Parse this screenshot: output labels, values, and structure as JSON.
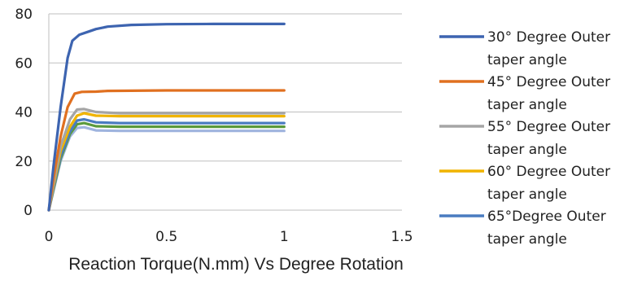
{
  "chart_data": {
    "type": "line",
    "title": "Reaction Torque(N.mm) Vs Degree Rotation",
    "xlim": [
      0,
      1.5
    ],
    "ylim": [
      0,
      80
    ],
    "x_ticks": [
      "0",
      "0.5",
      "1",
      "1.5"
    ],
    "y_ticks": [
      "0",
      "20",
      "40",
      "60",
      "80"
    ],
    "grid": "horizontal",
    "legend_position": "right",
    "series": [
      {
        "name": "30° Degree Outer taper angle",
        "legend_lines": [
          "30° Degree Outer",
          "taper angle"
        ],
        "color": "#3D64B0",
        "points": [
          [
            0,
            0
          ],
          [
            0.02,
            18
          ],
          [
            0.05,
            42
          ],
          [
            0.08,
            62
          ],
          [
            0.1,
            69
          ],
          [
            0.13,
            71.5
          ],
          [
            0.17,
            72.8
          ],
          [
            0.2,
            73.8
          ],
          [
            0.25,
            74.8
          ],
          [
            0.35,
            75.5
          ],
          [
            0.5,
            75.8
          ],
          [
            0.7,
            75.9
          ],
          [
            1,
            75.9
          ]
        ]
      },
      {
        "name": "45° Degree Outer taper angle",
        "legend_lines": [
          "45° Degree Outer",
          "taper angle"
        ],
        "color": "#E07020",
        "points": [
          [
            0,
            0
          ],
          [
            0.02,
            13
          ],
          [
            0.05,
            30
          ],
          [
            0.08,
            42
          ],
          [
            0.11,
            47.5
          ],
          [
            0.14,
            48.2
          ],
          [
            0.2,
            48.3
          ],
          [
            0.25,
            48.6
          ],
          [
            0.5,
            48.8
          ],
          [
            1,
            48.8
          ]
        ]
      },
      {
        "name": "55° Degree Outer taper angle",
        "legend_lines": [
          "55° Degree Outer",
          "taper angle"
        ],
        "color": "#A5A5A5",
        "points": [
          [
            0,
            0
          ],
          [
            0.02,
            11
          ],
          [
            0.05,
            26
          ],
          [
            0.09,
            37
          ],
          [
            0.12,
            41
          ],
          [
            0.15,
            41.2
          ],
          [
            0.2,
            40
          ],
          [
            0.3,
            39.5
          ],
          [
            1,
            39.5
          ]
        ]
      },
      {
        "name": "60° Degree Outer taper angle",
        "legend_lines": [
          "60° Degree Outer",
          "taper angle"
        ],
        "color": "#F0B400",
        "points": [
          [
            0,
            0
          ],
          [
            0.02,
            10
          ],
          [
            0.05,
            24
          ],
          [
            0.09,
            34
          ],
          [
            0.12,
            38.5
          ],
          [
            0.15,
            39.5
          ],
          [
            0.2,
            38.5
          ],
          [
            0.3,
            38.3
          ],
          [
            1,
            38.3
          ]
        ]
      },
      {
        "name": "65°Degree Outer taper angle",
        "legend_lines": [
          "65°Degree Outer",
          "taper angle"
        ],
        "color": "#4A7CC0",
        "points": [
          [
            0,
            0
          ],
          [
            0.02,
            9
          ],
          [
            0.05,
            22
          ],
          [
            0.09,
            32
          ],
          [
            0.12,
            36.5
          ],
          [
            0.15,
            37
          ],
          [
            0.2,
            35.8
          ],
          [
            0.3,
            35.5
          ],
          [
            1,
            35.5
          ]
        ]
      },
      {
        "name": "",
        "color": "#5B9A3C",
        "points": [
          [
            0,
            0
          ],
          [
            0.02,
            8.5
          ],
          [
            0.05,
            21
          ],
          [
            0.09,
            31
          ],
          [
            0.12,
            35
          ],
          [
            0.15,
            35.5
          ],
          [
            0.2,
            34.2
          ],
          [
            0.3,
            34
          ],
          [
            1,
            34
          ]
        ]
      },
      {
        "name": "",
        "color": "#9FB4DE",
        "points": [
          [
            0,
            0
          ],
          [
            0.02,
            8
          ],
          [
            0.05,
            20
          ],
          [
            0.09,
            30
          ],
          [
            0.12,
            33.5
          ],
          [
            0.15,
            33.8
          ],
          [
            0.2,
            32.5
          ],
          [
            0.3,
            32.3
          ],
          [
            1,
            32.3
          ]
        ]
      }
    ]
  }
}
